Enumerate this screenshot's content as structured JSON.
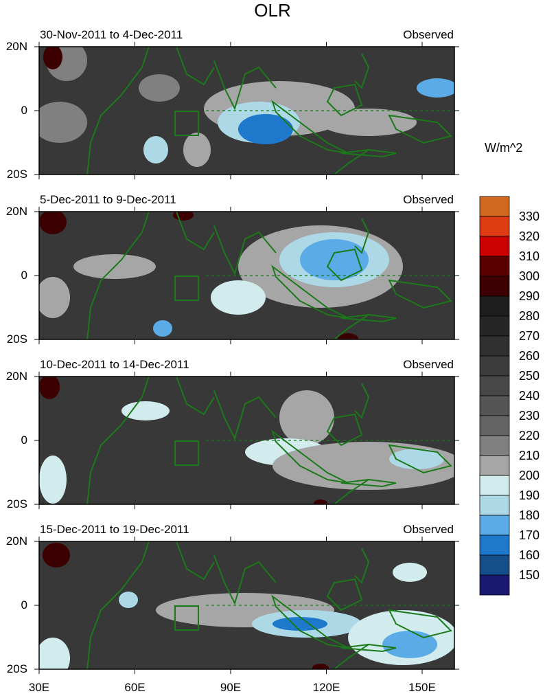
{
  "title": "OLR",
  "units": "W/m^2",
  "panels": [
    {
      "date_range": "30-Nov-2011 to 4-Dec-2011",
      "type": "Observed"
    },
    {
      "date_range": "5-Dec-2011 to 9-Dec-2011",
      "type": "Observed"
    },
    {
      "date_range": "10-Dec-2011 to 14-Dec-2011",
      "type": "Observed"
    },
    {
      "date_range": "15-Dec-2011 to 19-Dec-2011",
      "type": "Observed"
    }
  ],
  "lat_labels": [
    "20N",
    "0",
    "20S"
  ],
  "lon_labels": [
    "30E",
    "60E",
    "90E",
    "120E",
    "150E"
  ],
  "colorbar": {
    "labels": [
      "330",
      "320",
      "310",
      "300",
      "290",
      "280",
      "270",
      "260",
      "250",
      "240",
      "230",
      "220",
      "210",
      "200",
      "190",
      "180",
      "170",
      "160",
      "150"
    ],
    "colors": [
      "#d2691e",
      "#e03c14",
      "#cc0000",
      "#5a0000",
      "#3c0000",
      "#1e1e1e",
      "#262626",
      "#303030",
      "#3c3c3c",
      "#484848",
      "#555555",
      "#646464",
      "#808080",
      "#a6a6a6",
      "#d2ecee",
      "#add8e6",
      "#5aabe6",
      "#1e78cc",
      "#164e8c",
      "#191970"
    ]
  },
  "coastline_color": "#1a7a1a"
}
